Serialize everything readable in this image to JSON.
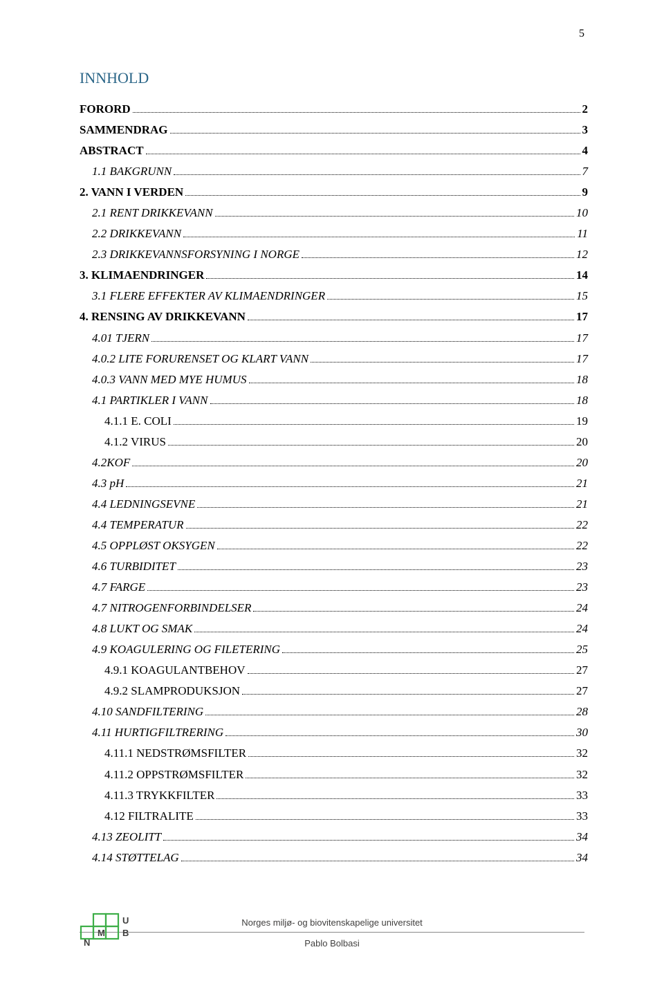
{
  "page_number": "5",
  "heading": "INNHOLD",
  "colors": {
    "heading_color": "#2b6688",
    "text_color": "#000000",
    "background": "#ffffff",
    "footer_text": "#403f3e",
    "logo_green": "#3dae48"
  },
  "typography": {
    "body_family": "Times New Roman",
    "body_size_pt": 12,
    "heading_size_pt": 16,
    "footer_family": "Arial",
    "footer_size_pt": 10
  },
  "toc": [
    {
      "title": "FORORD",
      "page": "2",
      "style": "bold",
      "indent": 0
    },
    {
      "title": "SAMMENDRAG",
      "page": "3",
      "style": "bold",
      "indent": 0
    },
    {
      "title": "ABSTRACT",
      "page": "4",
      "style": "bold",
      "indent": 0
    },
    {
      "title": "1.1 BAKGRUNN",
      "page": "7",
      "style": "italic",
      "indent": 1
    },
    {
      "title": "2. VANN I VERDEN",
      "page": "9",
      "style": "bold",
      "indent": 0
    },
    {
      "title": "2.1 RENT DRIKKEVANN",
      "page": "10",
      "style": "italic",
      "indent": 1
    },
    {
      "title": "2.2 DRIKKEVANN",
      "page": "11",
      "style": "italic",
      "indent": 1
    },
    {
      "title": "2.3 DRIKKEVANNSFORSYNING I NORGE",
      "page": "12",
      "style": "italic",
      "indent": 1
    },
    {
      "title": "3. KLIMAENDRINGER",
      "page": "14",
      "style": "bold",
      "indent": 0
    },
    {
      "title": "3.1 FLERE EFFEKTER AV KLIMAENDRINGER",
      "page": "15",
      "style": "italic",
      "indent": 1
    },
    {
      "title": "4. RENSING AV DRIKKEVANN",
      "page": "17",
      "style": "bold",
      "indent": 0
    },
    {
      "title": "4.01 TJERN",
      "page": "17",
      "style": "italic",
      "indent": 1
    },
    {
      "title": "4.0.2 LITE FORURENSET OG KLART VANN",
      "page": "17",
      "style": "italic",
      "indent": 1
    },
    {
      "title": "4.0.3 VANN MED MYE HUMUS",
      "page": "18",
      "style": "italic",
      "indent": 1
    },
    {
      "title": "4.1 PARTIKLER I VANN",
      "page": "18",
      "style": "italic",
      "indent": 1
    },
    {
      "title": "4.1.1 E. COLI",
      "page": "19",
      "style": "normal",
      "indent": 2
    },
    {
      "title": "4.1.2 VIRUS",
      "page": "20",
      "style": "normal",
      "indent": 2
    },
    {
      "title": "4.2KOF",
      "page": "20",
      "style": "italic",
      "indent": 1
    },
    {
      "title": "4.3 pH",
      "page": "21",
      "style": "italic",
      "indent": 1
    },
    {
      "title": "4.4 LEDNINGSEVNE",
      "page": "21",
      "style": "italic",
      "indent": 1
    },
    {
      "title": "4.4 TEMPERATUR",
      "page": "22",
      "style": "italic",
      "indent": 1
    },
    {
      "title": "4.5 OPPLØST OKSYGEN",
      "page": "22",
      "style": "italic",
      "indent": 1
    },
    {
      "title": "4.6 TURBIDITET",
      "page": "23",
      "style": "italic",
      "indent": 1
    },
    {
      "title": "4.7 FARGE",
      "page": "23",
      "style": "italic",
      "indent": 1
    },
    {
      "title": "4.7 NITROGENFORBINDELSER",
      "page": "24",
      "style": "italic",
      "indent": 1
    },
    {
      "title": "4.8 LUKT OG SMAK",
      "page": "24",
      "style": "italic",
      "indent": 1
    },
    {
      "title": "4.9 KOAGULERING OG FILETERING",
      "page": "25",
      "style": "italic",
      "indent": 1
    },
    {
      "title": "4.9.1 KOAGULANTBEHOV",
      "page": "27",
      "style": "normal",
      "indent": 2
    },
    {
      "title": "4.9.2 SLAMPRODUKSJON",
      "page": "27",
      "style": "normal",
      "indent": 2
    },
    {
      "title": "4.10 SANDFILTERING",
      "page": "28",
      "style": "italic",
      "indent": 1
    },
    {
      "title": "4.11 HURTIGFILTRERING",
      "page": "30",
      "style": "italic",
      "indent": 1
    },
    {
      "title": "4.11.1 NEDSTRØMSFILTER",
      "page": "32",
      "style": "normal",
      "indent": 2
    },
    {
      "title": "4.11.2 OPPSTRØMSFILTER",
      "page": "32",
      "style": "normal",
      "indent": 2
    },
    {
      "title": "4.11.3 TRYKKFILTER",
      "page": "33",
      "style": "normal",
      "indent": 2
    },
    {
      "title": "4.12 FILTRALITE",
      "page": "33",
      "style": "normal",
      "indent": 2
    },
    {
      "title": "4.13 ZEOLITT",
      "page": "34",
      "style": "italic",
      "indent": 1
    },
    {
      "title": "4.14 STØTTELAG",
      "page": "34",
      "style": "italic",
      "indent": 1
    }
  ],
  "footer": {
    "institution": "Norges miljø- og biovitenskapelige universitet",
    "author": "Pablo Bolbasi",
    "logo_letters": {
      "top": "U",
      "bottom_left": "N",
      "middle_left": "M",
      "middle_right": "B"
    }
  }
}
